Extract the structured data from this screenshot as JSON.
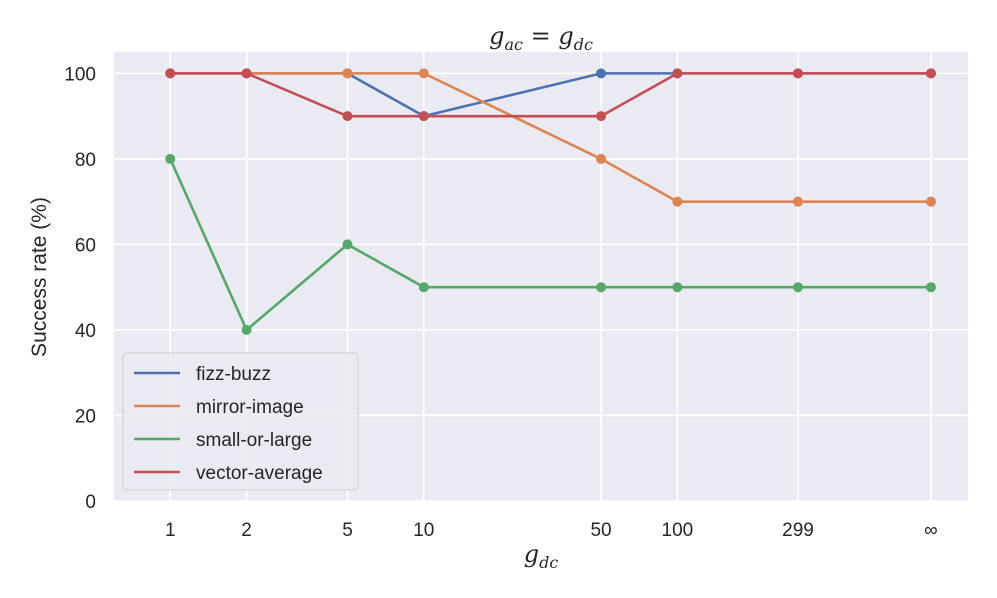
{
  "chart_data": {
    "type": "line",
    "title": {
      "base": "g",
      "sub1": "ac",
      "eq": " = ",
      "sub2": "dc"
    },
    "xlabel": {
      "base": "g",
      "sub": "dc"
    },
    "ylabel": "Success rate (%)",
    "categories": [
      "1",
      "2",
      "5",
      "10",
      "50",
      "100",
      "299",
      "∞"
    ],
    "x_positions": [
      1,
      2,
      5,
      10,
      50,
      100,
      299,
      1000
    ],
    "yticks": [
      "0",
      "20",
      "40",
      "60",
      "80",
      "100"
    ],
    "ylim": [
      0,
      105
    ],
    "grid": true,
    "legend_location": "lower-left",
    "series": [
      {
        "name": "fizz-buzz",
        "color": "#4c72b0",
        "values": [
          100,
          100,
          100,
          90,
          100,
          100,
          100,
          100
        ]
      },
      {
        "name": "mirror-image",
        "color": "#dd8452",
        "values": [
          100,
          100,
          100,
          100,
          80,
          70,
          70,
          70
        ]
      },
      {
        "name": "small-or-large",
        "color": "#55a868",
        "values": [
          80,
          40,
          60,
          50,
          50,
          50,
          50,
          50
        ]
      },
      {
        "name": "vector-average",
        "color": "#c44e52",
        "values": [
          100,
          100,
          90,
          90,
          90,
          100,
          100,
          100
        ]
      }
    ]
  }
}
